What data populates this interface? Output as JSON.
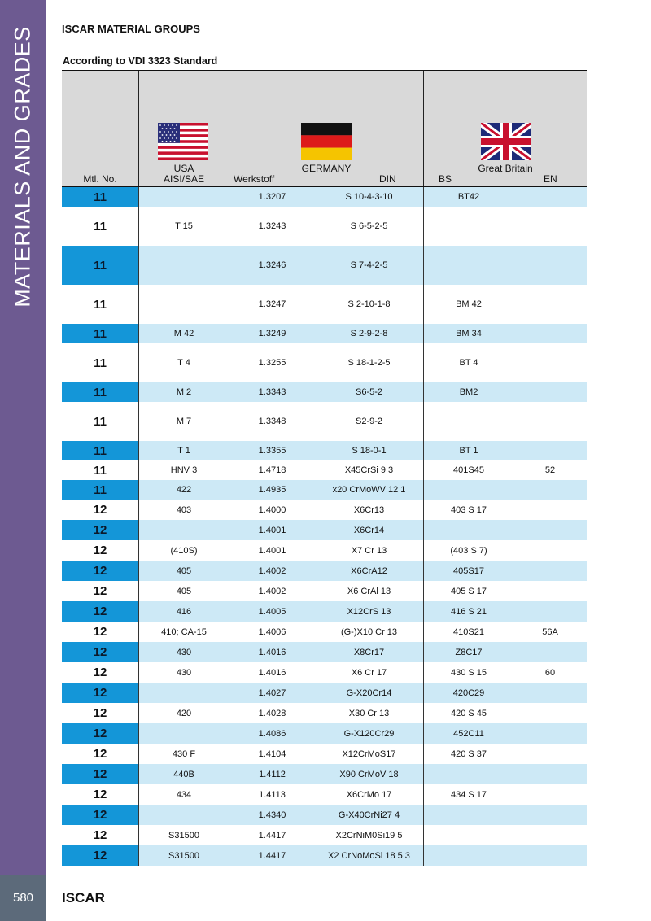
{
  "sidebar": {
    "title": "MATERIALS AND GRADES"
  },
  "header": {
    "title": "ISCAR MATERIAL GROUPS",
    "subtitle": "According to VDI 3323 Standard"
  },
  "table": {
    "col_mtl": "Mtl. No.",
    "usa_country": "USA",
    "usa_sub": "AISI/SAE",
    "germany_country": "GERMANY",
    "werkstoff": "Werkstoff",
    "din": "DIN",
    "gb_country": "Great Britain",
    "bs": "BS",
    "en": "EN",
    "flags": [
      "usa-flag-icon",
      "germany-flag-icon",
      "uk-flag-icon"
    ],
    "rows": [
      {
        "mtl": "11",
        "usa": "",
        "werk": "1.3207",
        "din": "S 10-4-3-10",
        "bs": "BT42",
        "en": ""
      },
      {
        "mtl": "11",
        "usa": "T 15",
        "werk": "1.3243",
        "din": "S 6-5-2-5",
        "bs": "",
        "en": ""
      },
      {
        "mtl": "11",
        "usa": "",
        "werk": "1.3246",
        "din": "S 7-4-2-5",
        "bs": "",
        "en": ""
      },
      {
        "mtl": "11",
        "usa": "",
        "werk": "1.3247",
        "din": "S 2-10-1-8",
        "bs": "BM 42",
        "en": ""
      },
      {
        "mtl": "11",
        "usa": "M 42",
        "werk": "1.3249",
        "din": "S 2-9-2-8",
        "bs": "BM 34",
        "en": ""
      },
      {
        "mtl": "11",
        "usa": "T 4",
        "werk": "1.3255",
        "din": "S 18-1-2-5",
        "bs": "BT 4",
        "en": ""
      },
      {
        "mtl": "11",
        "usa": "M 2",
        "werk": "1.3343",
        "din": "S6-5-2",
        "bs": "BM2",
        "en": ""
      },
      {
        "mtl": "11",
        "usa": "M 7",
        "werk": "1.3348",
        "din": "S2-9-2",
        "bs": "",
        "en": ""
      },
      {
        "mtl": "11",
        "usa": "T 1",
        "werk": "1.3355",
        "din": "S 18-0-1",
        "bs": "BT 1",
        "en": ""
      },
      {
        "mtl": "11",
        "usa": "HNV 3",
        "werk": "1.4718",
        "din": "X45CrSi 9 3",
        "bs": "401S45",
        "en": "52"
      },
      {
        "mtl": "11",
        "usa": "422",
        "werk": "1.4935",
        "din": "x20 CrMoWV 12 1",
        "bs": "",
        "en": ""
      },
      {
        "mtl": "12",
        "usa": "403",
        "werk": "1.4000",
        "din": "X6Cr13",
        "bs": "403 S 17",
        "en": ""
      },
      {
        "mtl": "12",
        "usa": "",
        "werk": "1.4001",
        "din": "X6Cr14",
        "bs": "",
        "en": ""
      },
      {
        "mtl": "12",
        "usa": "(410S)",
        "werk": "1.4001",
        "din": "X7 Cr 13",
        "bs": "(403 S 7)",
        "en": ""
      },
      {
        "mtl": "12",
        "usa": "405",
        "werk": "1.4002",
        "din": "X6CrA12",
        "bs": "405S17",
        "en": ""
      },
      {
        "mtl": "12",
        "usa": "405",
        "werk": "1.4002",
        "din": "X6 CrAl 13",
        "bs": "405 S 17",
        "en": ""
      },
      {
        "mtl": "12",
        "usa": "416",
        "werk": "1.4005",
        "din": "X12CrS 13",
        "bs": "416 S 21",
        "en": ""
      },
      {
        "mtl": "12",
        "usa": "410; CA-15",
        "werk": "1.4006",
        "din": "(G-)X10 Cr 13",
        "bs": "410S21",
        "en": "56A"
      },
      {
        "mtl": "12",
        "usa": "430",
        "werk": "1.4016",
        "din": "X8Cr17",
        "bs": "Z8C17",
        "en": ""
      },
      {
        "mtl": "12",
        "usa": "430",
        "werk": "1.4016",
        "din": "X6 Cr 17",
        "bs": "430 S 15",
        "en": "60"
      },
      {
        "mtl": "12",
        "usa": "",
        "werk": "1.4027",
        "din": "G-X20Cr14",
        "bs": "420C29",
        "en": ""
      },
      {
        "mtl": "12",
        "usa": "420",
        "werk": "1.4028",
        "din": "X30 Cr 13",
        "bs": "420 S 45",
        "en": ""
      },
      {
        "mtl": "12",
        "usa": "",
        "werk": "1.4086",
        "din": "G-X120Cr29",
        "bs": "452C11",
        "en": ""
      },
      {
        "mtl": "12",
        "usa": "430 F",
        "werk": "1.4104",
        "din": "X12CrMoS17",
        "bs": "420 S 37",
        "en": ""
      },
      {
        "mtl": "12",
        "usa": "440B",
        "werk": "1.4112",
        "din": "X90 CrMoV 18",
        "bs": "",
        "en": ""
      },
      {
        "mtl": "12",
        "usa": "434",
        "werk": "1.4113",
        "din": "X6CrMo 17",
        "bs": "434 S 17",
        "en": ""
      },
      {
        "mtl": "12",
        "usa": "",
        "werk": "1.4340",
        "din": "G-X40CrNi27 4",
        "bs": "",
        "en": ""
      },
      {
        "mtl": "12",
        "usa": "S31500",
        "werk": "1.4417",
        "din": "X2CrNiM0Si19 5",
        "bs": "",
        "en": ""
      },
      {
        "mtl": "12",
        "usa": "S31500",
        "werk": "1.4417",
        "din": "X2 CrNoMoSi 18 5 3",
        "bs": "",
        "en": ""
      }
    ]
  },
  "footer": {
    "page": "580",
    "brand": "ISCAR"
  }
}
